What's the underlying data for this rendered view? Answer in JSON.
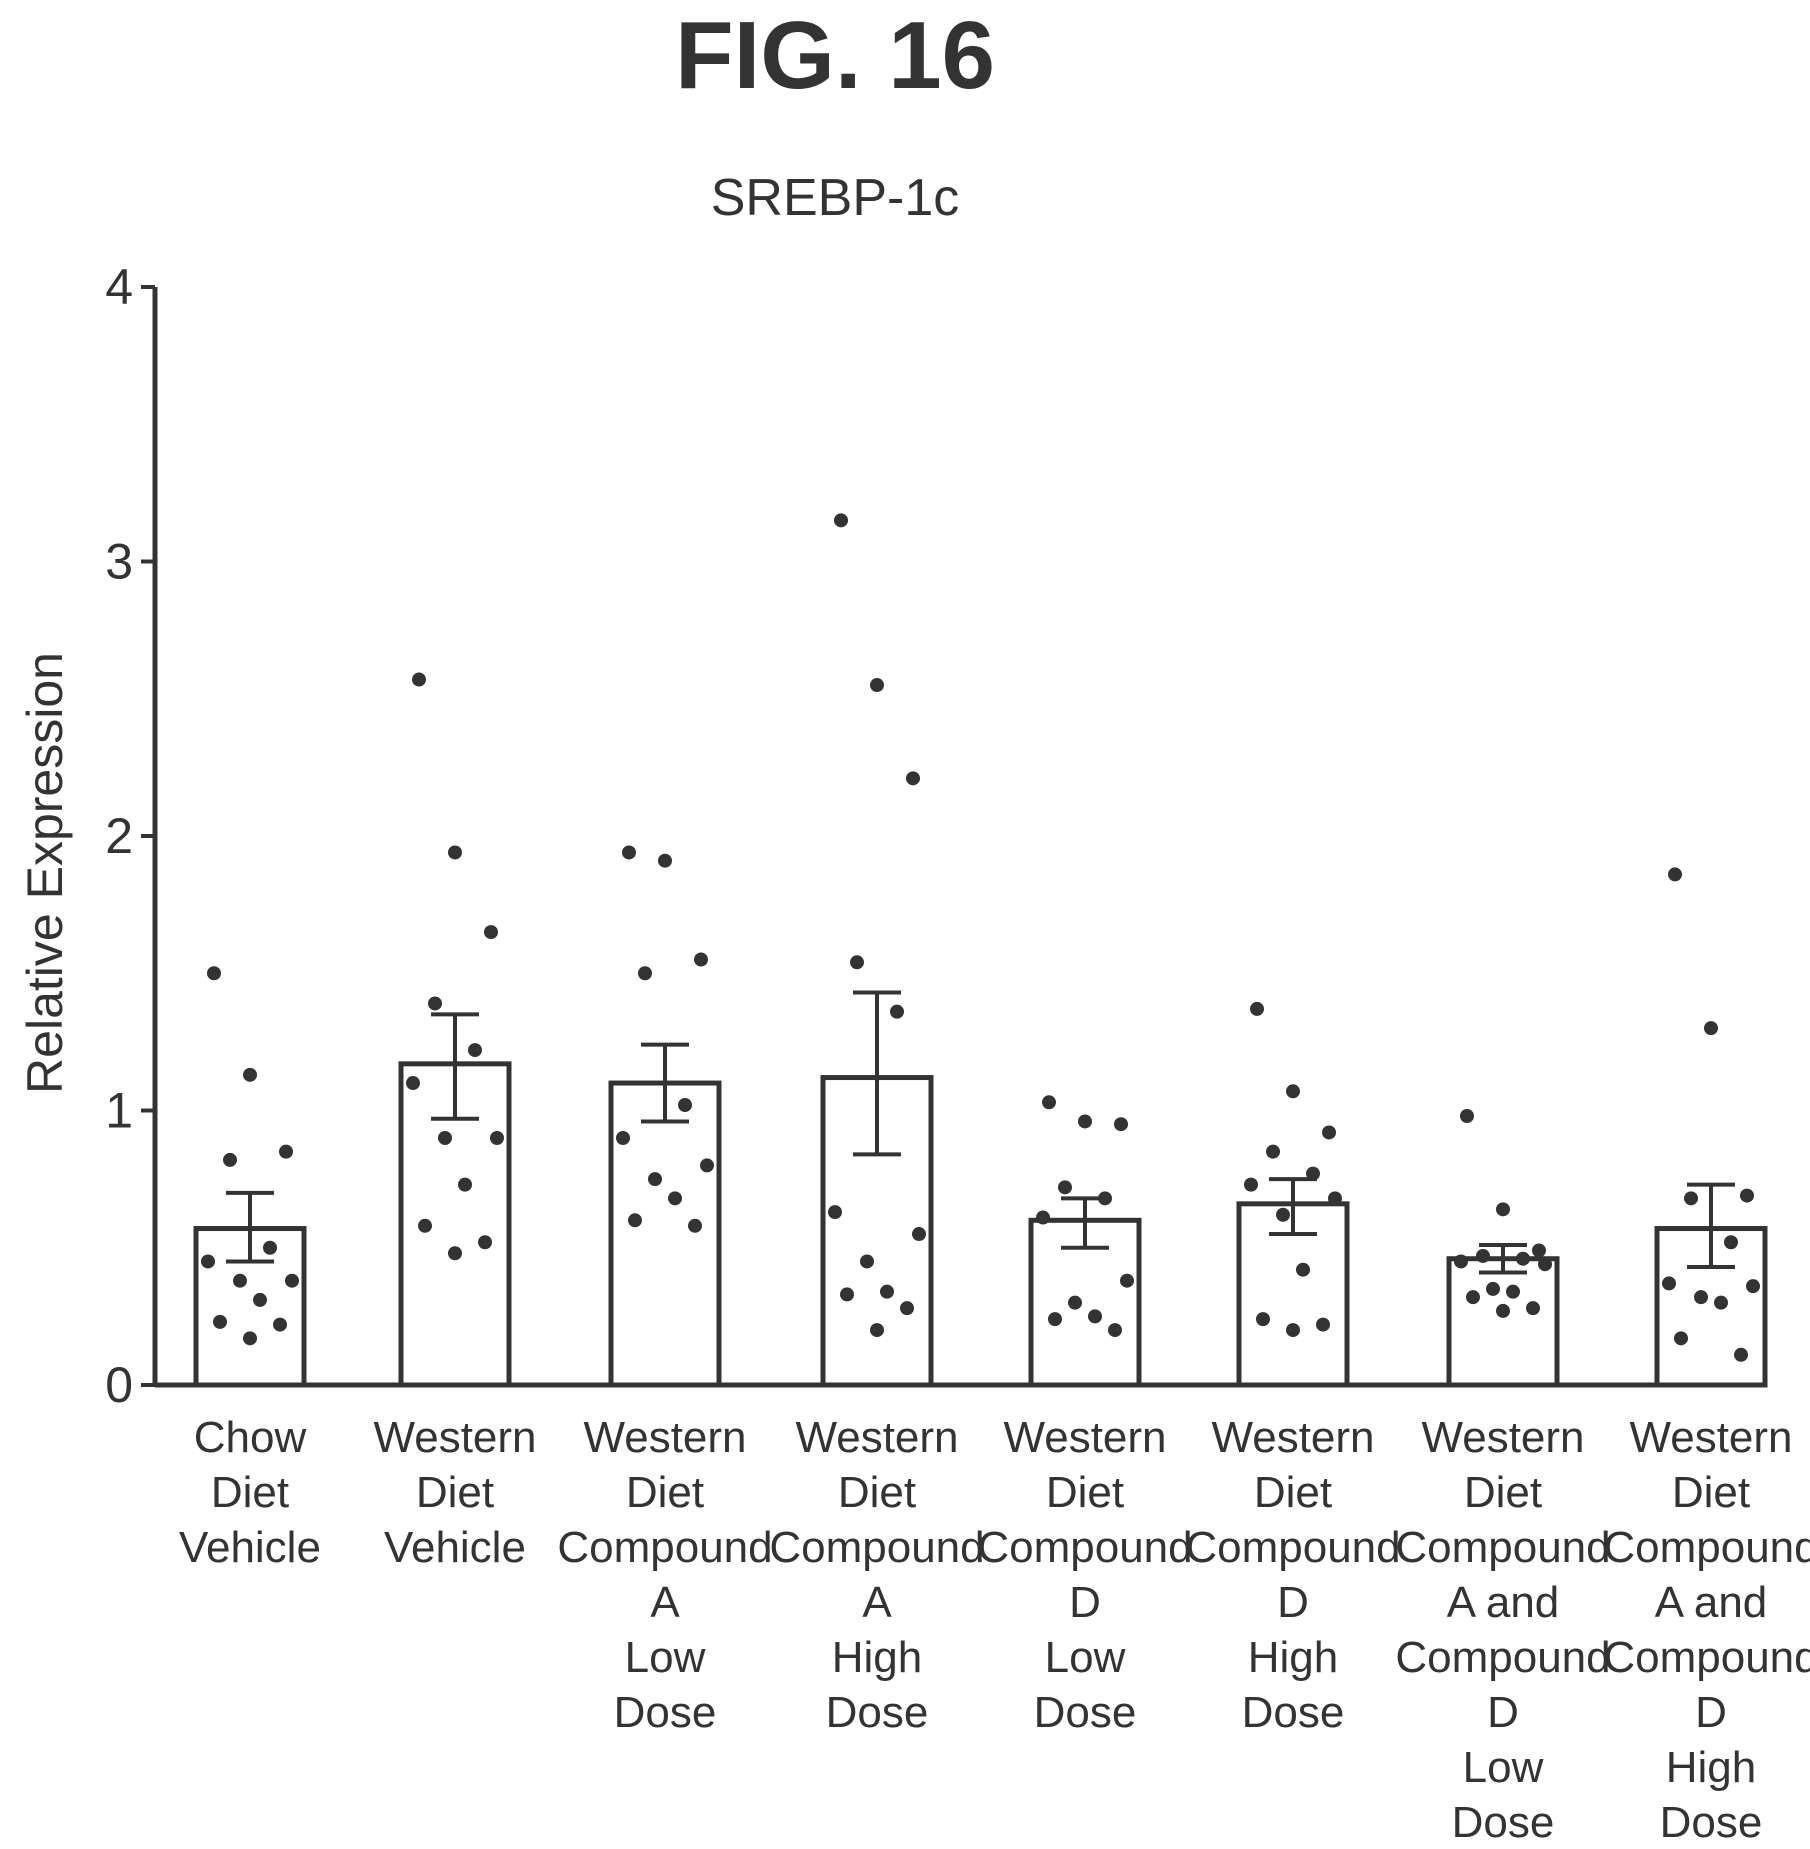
{
  "figure_label": "FIG. 16",
  "chart_data": {
    "type": "bar",
    "title": "SREBP-1c",
    "xlabel": "",
    "ylabel": "Relative Expression",
    "ylim": [
      0,
      4
    ],
    "yticks": [
      0,
      1,
      2,
      3,
      4
    ],
    "grid": false,
    "legend": "none",
    "colors": {
      "bar_fill": "#ffffff",
      "stroke": "#333333",
      "point": "#333333"
    },
    "categories": [
      [
        "Chow",
        "Diet",
        "Vehicle"
      ],
      [
        "Western",
        "Diet",
        "Vehicle"
      ],
      [
        "Western",
        "Diet",
        "Compound",
        "A",
        "Low",
        "Dose"
      ],
      [
        "Western",
        "Diet",
        "Compound",
        "A",
        "High",
        "Dose"
      ],
      [
        "Western",
        "Diet",
        "Compound",
        "D",
        "Low",
        "Dose"
      ],
      [
        "Western",
        "Diet",
        "Compound",
        "D",
        "High",
        "Dose"
      ],
      [
        "Western",
        "Diet",
        "Compound",
        "A and",
        "Compound",
        "D",
        "Low",
        "Dose"
      ],
      [
        "Western",
        "Diet",
        "Compound",
        "A and",
        "Compound",
        "D",
        "High",
        "Dose"
      ]
    ],
    "values": [
      0.57,
      1.17,
      1.1,
      1.12,
      0.6,
      0.66,
      0.46,
      0.57
    ],
    "error_low": [
      0.45,
      0.97,
      0.96,
      0.84,
      0.5,
      0.55,
      0.41,
      0.43
    ],
    "error_high": [
      0.7,
      1.35,
      1.24,
      1.43,
      0.68,
      0.75,
      0.51,
      0.73
    ],
    "points": [
      [
        1.5,
        1.13,
        0.85,
        0.82,
        0.5,
        0.45,
        0.38,
        0.38,
        0.31,
        0.23,
        0.22,
        0.17
      ],
      [
        2.57,
        1.94,
        1.65,
        1.39,
        1.22,
        1.1,
        0.9,
        0.9,
        0.73,
        0.58,
        0.52,
        0.48
      ],
      [
        1.94,
        1.91,
        1.55,
        1.5,
        1.02,
        0.9,
        0.8,
        0.75,
        0.68,
        0.6,
        0.58
      ],
      [
        3.15,
        2.55,
        2.21,
        1.54,
        1.36,
        0.63,
        0.55,
        0.45,
        0.34,
        0.33,
        0.28,
        0.2
      ],
      [
        1.03,
        0.96,
        0.95,
        0.72,
        0.68,
        0.61,
        0.38,
        0.3,
        0.25,
        0.24,
        0.2
      ],
      [
        1.37,
        1.07,
        0.92,
        0.85,
        0.77,
        0.73,
        0.68,
        0.62,
        0.42,
        0.24,
        0.22,
        0.2
      ],
      [
        0.98,
        0.64,
        0.49,
        0.47,
        0.46,
        0.45,
        0.44,
        0.35,
        0.34,
        0.32,
        0.28,
        0.27
      ],
      [
        1.86,
        1.3,
        0.69,
        0.68,
        0.52,
        0.37,
        0.36,
        0.32,
        0.3,
        0.17,
        0.11
      ]
    ]
  }
}
